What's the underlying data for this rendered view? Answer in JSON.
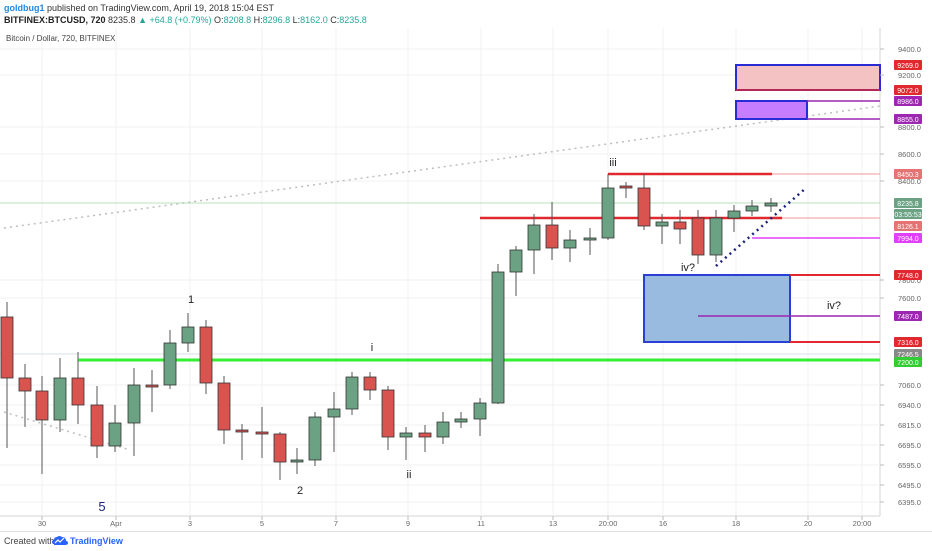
{
  "publisher": {
    "user": "goldbug1",
    "text": "published on TradingView.com, April 19, 2018 15:04 EST"
  },
  "ohlc": {
    "symbol": "BITFINEX:BTCUSD, 720",
    "last": "8235.8",
    "change": "▲ +64.8 (+0.79%)",
    "o_label": "O:",
    "o": "8208.8",
    "h_label": "H:",
    "h": "8296.8",
    "l_label": "L:",
    "l": "8162.0",
    "c_label": "C:",
    "c": "8235.8"
  },
  "chart_title": "Bitcoin / Dollar, 720, BITFINEX",
  "footer": {
    "created": "Created with",
    "brand": "TradingView"
  },
  "colors": {
    "up": "#6aa283",
    "down": "#d9534f",
    "green_line": "#33ee33",
    "red_line": "#e0282e",
    "magenta": "#e040fb",
    "purple": "#9c27b0",
    "blue_box": "#2962ff"
  },
  "axis": {
    "price_ticks": [
      "9400.0",
      "9200.0",
      "8800.0",
      "8600.0",
      "8400.0",
      "7800.0",
      "7600.0",
      "7060.0",
      "6940.0",
      "6815.0",
      "6695.0",
      "6595.0",
      "6495.0",
      "6395.0"
    ],
    "time_ticks": [
      "30",
      "Apr",
      "3",
      "5",
      "7",
      "9",
      "11",
      "13",
      "20:00",
      "16",
      "18",
      "20",
      "20:00"
    ]
  },
  "price_labels": [
    {
      "text": "9269.0",
      "color": "#e0282e"
    },
    {
      "text": "9072.0",
      "color": "#e0282e"
    },
    {
      "text": "8986.0",
      "color": "#9c27b0"
    },
    {
      "text": "8855.0",
      "color": "#9c27b0"
    },
    {
      "text": "8450.3",
      "color": "#e57373"
    },
    {
      "text": "8235.8",
      "color": "#6aa283"
    },
    {
      "text": "03:55:53",
      "color": "#6aa283"
    },
    {
      "text": "8126.1",
      "color": "#e57373"
    },
    {
      "text": "7994.0",
      "color": "#e040fb"
    },
    {
      "text": "7748.0",
      "color": "#e0282e"
    },
    {
      "text": "7487.0",
      "color": "#9c27b0"
    },
    {
      "text": "7316.0",
      "color": "#e0282e"
    },
    {
      "text": "7246.5",
      "color": "#888888"
    },
    {
      "text": "7200.0",
      "color": "#33cc33"
    }
  ],
  "annotations": {
    "wave_1": "1",
    "wave_2": "2",
    "wave_5": "5",
    "wave_i": "i",
    "wave_ii": "ii",
    "wave_iii": "iii",
    "wave_iv_q1": "iv?",
    "wave_iv_q2": "iv?"
  }
}
